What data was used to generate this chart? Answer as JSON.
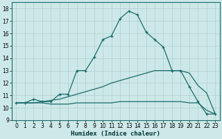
{
  "title": "",
  "xlabel": "Humidex (Indice chaleur)",
  "xlim": [
    -0.5,
    23.5
  ],
  "ylim": [
    9,
    18.5
  ],
  "yticks": [
    9,
    10,
    11,
    12,
    13,
    14,
    15,
    16,
    17,
    18
  ],
  "xticks": [
    0,
    1,
    2,
    3,
    4,
    5,
    6,
    7,
    8,
    9,
    10,
    11,
    12,
    13,
    14,
    15,
    16,
    17,
    18,
    19,
    20,
    21,
    22,
    23
  ],
  "bg_color": "#cde8e8",
  "line_color": "#1a6b6b",
  "grid_color": "#aecfcf",
  "line1_x": [
    0,
    1,
    2,
    3,
    4,
    5,
    6,
    7,
    8,
    9,
    10,
    11,
    12,
    13,
    14,
    15,
    16,
    17,
    18,
    19,
    20,
    21,
    22,
    23
  ],
  "line1_y": [
    10.4,
    10.4,
    10.7,
    10.5,
    10.5,
    11.1,
    11.1,
    13.0,
    13.0,
    14.1,
    15.5,
    15.8,
    17.2,
    17.8,
    17.5,
    16.1,
    15.5,
    14.9,
    13.0,
    13.0,
    11.7,
    10.5,
    9.5,
    9.5
  ],
  "line2_x": [
    0,
    1,
    2,
    3,
    4,
    5,
    6,
    7,
    8,
    9,
    10,
    11,
    12,
    13,
    14,
    15,
    16,
    17,
    18,
    19,
    20,
    21,
    22,
    23
  ],
  "line2_y": [
    10.4,
    10.4,
    10.4,
    10.4,
    10.3,
    10.3,
    10.3,
    10.4,
    10.4,
    10.4,
    10.4,
    10.4,
    10.5,
    10.5,
    10.5,
    10.5,
    10.5,
    10.5,
    10.5,
    10.5,
    10.4,
    10.4,
    9.8,
    9.5
  ],
  "line3_x": [
    0,
    1,
    2,
    3,
    4,
    5,
    6,
    7,
    8,
    9,
    10,
    11,
    12,
    13,
    14,
    15,
    16,
    17,
    18,
    19,
    20,
    21,
    22,
    23
  ],
  "line3_y": [
    10.4,
    10.4,
    10.4,
    10.5,
    10.6,
    10.7,
    10.9,
    11.1,
    11.3,
    11.5,
    11.7,
    12.0,
    12.2,
    12.4,
    12.6,
    12.8,
    13.0,
    13.0,
    13.0,
    13.0,
    12.8,
    11.8,
    11.2,
    9.5
  ]
}
